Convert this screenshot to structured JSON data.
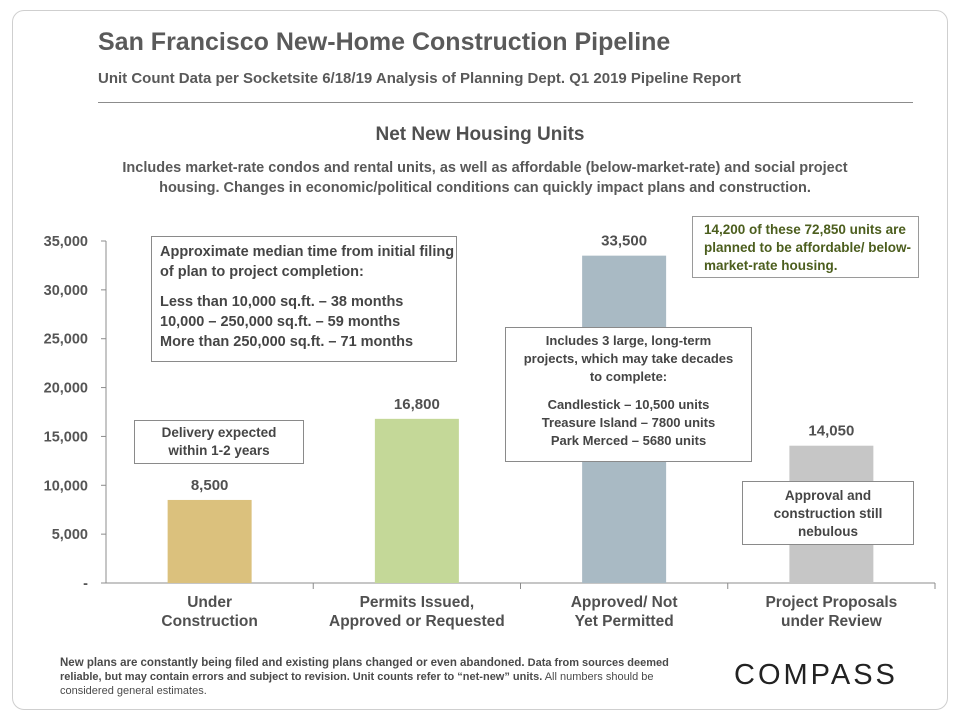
{
  "header": {
    "title": "San Francisco New-Home Construction Pipeline",
    "subtitle": "Unit Count Data per Socketsite  6/18/19 Analysis  of Planning  Dept.  Q1 2019 Pipeline  Report"
  },
  "chart_data": {
    "type": "bar",
    "title": "Net New Housing Units",
    "description_lines": [
      "Includes market-rate condos and rental units, as well as affordable (below-market-rate) and social project",
      "housing. Changes in economic/political  conditions can quickly impact plans and construction."
    ],
    "categories": [
      [
        "Under",
        "Construction"
      ],
      [
        "Permits Issued,",
        "Approved or Requested"
      ],
      [
        "Approved/ Not",
        "Yet Permitted"
      ],
      [
        "Project Proposals",
        "under Review"
      ]
    ],
    "values": [
      8500,
      16800,
      33500,
      14050
    ],
    "data_labels": [
      "8,500",
      "16,800",
      "33,500",
      "14,050"
    ],
    "bar_colors": [
      "#dbc17d",
      "#c4d898",
      "#a9bac4",
      "#c6c6c6"
    ],
    "ylim": [
      0,
      35000
    ],
    "yticks": [
      0,
      5000,
      10000,
      15000,
      20000,
      25000,
      30000,
      35000
    ],
    "ytick_labels": [
      "-",
      "5,000",
      "10,000",
      "15,000",
      "20,000",
      "25,000",
      "30,000",
      "35,000"
    ],
    "grid": false,
    "xlabel": "",
    "ylabel": ""
  },
  "annotations": {
    "median_time": {
      "heading": "Approximate median time from initial filing of plan to project completion:",
      "lines": [
        "Less than 10,000 sq.ft. – 38 months",
        "10,000 – 250,000 sq.ft. – 59 months",
        "More than 250,000 sq.ft. – 71 months"
      ]
    },
    "delivery": "Delivery expected within 1-2 years",
    "large_projects": {
      "intro": "Includes 3 large, long-term projects, which may take decades to complete:",
      "lines": [
        "Candlestick – 10,500 units",
        "Treasure Island – 7800 units",
        "Park Merced – 5680 units"
      ]
    },
    "affordable": "14,200  of these 72,850 units are planned to be affordable/ below-market-rate housing.",
    "proposals": "Approval and construction still nebulous"
  },
  "footer": {
    "lead": "New plans are constantly being filed and existing plans changed or even abandoned.",
    "rest": " Data from sources deemed reliable, but may contain errors and subject to revision. Unit counts refer to “net-new” units.",
    "last": " All numbers should be considered general estimates."
  },
  "brand": {
    "logo_text": "COMPASS"
  }
}
